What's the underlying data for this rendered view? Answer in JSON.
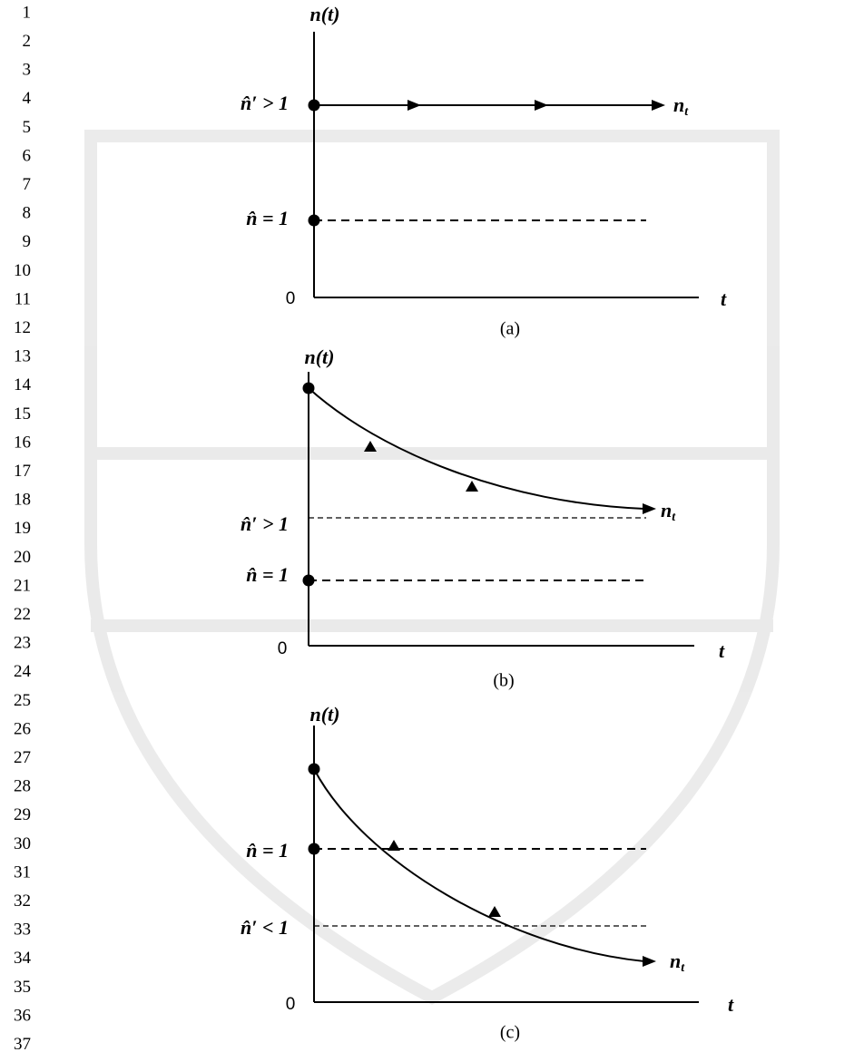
{
  "line_numbers": [
    "1",
    "2",
    "3",
    "4",
    "5",
    "6",
    "7",
    "8",
    "9",
    "10",
    "11",
    "12",
    "13",
    "14",
    "15",
    "16",
    "17",
    "18",
    "19",
    "20",
    "21",
    "22",
    "23",
    "24",
    "25",
    "26",
    "27",
    "28",
    "29",
    "30",
    "31",
    "32",
    "33",
    "34",
    "35",
    "36",
    "37"
  ],
  "panels": [
    {
      "y_label": "n(t)",
      "origin": "0",
      "x_label": "t",
      "curve_label": {
        "base": "n",
        "sub": "t"
      },
      "levels": [
        "n̂′ > 1",
        "n̂ = 1"
      ],
      "caption": "(a)"
    },
    {
      "y_label": "n(t)",
      "origin": "0",
      "x_label": "t",
      "curve_label": {
        "base": "n",
        "sub": "t"
      },
      "levels": [
        "n̂′ > 1",
        "n̂ = 1"
      ],
      "caption": "(b)"
    },
    {
      "y_label": "n(t)",
      "origin": "0",
      "x_label": "t",
      "curve_label": {
        "base": "n",
        "sub": "t"
      },
      "levels": [
        "n̂ = 1",
        "n̂′ < 1"
      ],
      "caption": "(c)"
    }
  ]
}
